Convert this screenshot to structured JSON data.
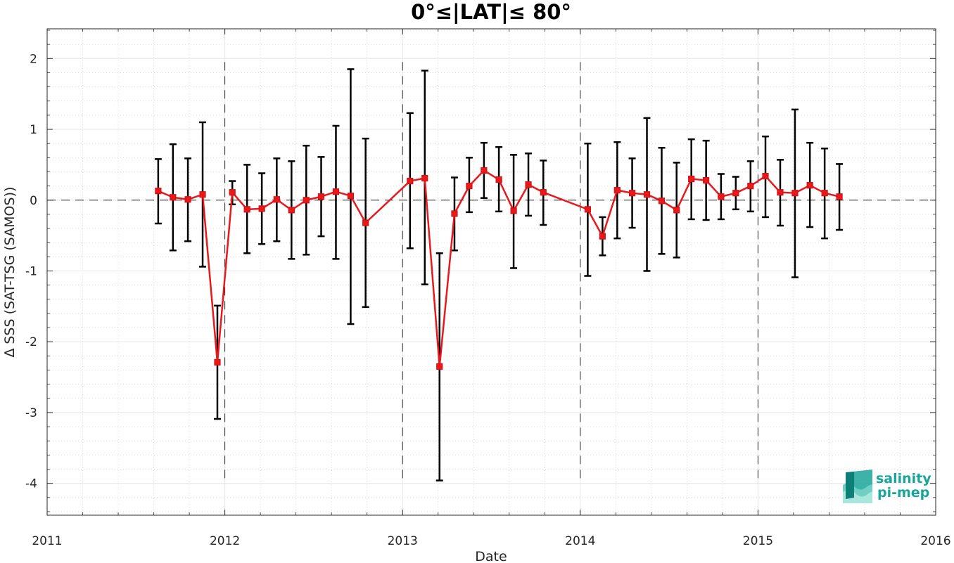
{
  "chart_data": {
    "type": "line",
    "title": "0°≤|LAT|≤ 80°",
    "xlabel": "Date",
    "ylabel": "∆ SSS (SAT-TSG (SAMOS))",
    "xlim": [
      2011,
      2016
    ],
    "ylim": [
      -4.45,
      2.42
    ],
    "x_ticks": [
      "2011",
      "2012",
      "2013",
      "2014",
      "2015",
      "2016"
    ],
    "y_ticks": [
      2,
      1,
      0,
      -1,
      -2,
      -3,
      -4
    ],
    "y_tick_labels": [
      "2",
      "1",
      "0",
      "-1",
      "-2",
      "-3",
      "-4"
    ],
    "grid": true,
    "year_boundaries": [
      2012,
      2013,
      2014,
      2015
    ],
    "zero_line": 0,
    "series": [
      {
        "color": "#e8191c",
        "errorbar_color": "#000000",
        "x": [
          2011.625,
          2011.708,
          2011.792,
          2011.875,
          2011.958,
          2012.042,
          2012.125,
          2012.208,
          2012.292,
          2012.375,
          2012.458,
          2012.542,
          2012.625,
          2012.708,
          2012.792,
          2013.042,
          2013.125,
          2013.208,
          2013.292,
          2013.375,
          2013.458,
          2013.542,
          2013.625,
          2013.708,
          2013.792,
          2014.042,
          2014.125,
          2014.208,
          2014.292,
          2014.375,
          2014.458,
          2014.542,
          2014.625,
          2014.708,
          2014.792,
          2014.875,
          2014.958,
          2015.042,
          2015.125,
          2015.208,
          2015.292,
          2015.375,
          2015.458
        ],
        "y": [
          0.13,
          0.04,
          0.01,
          0.08,
          -2.29,
          0.11,
          -0.13,
          -0.12,
          0.01,
          -0.14,
          0.0,
          0.05,
          0.12,
          0.06,
          -0.32,
          0.27,
          0.31,
          -2.35,
          -0.19,
          0.2,
          0.42,
          0.29,
          -0.15,
          0.22,
          0.11,
          -0.13,
          -0.51,
          0.14,
          0.1,
          0.08,
          -0.01,
          -0.14,
          0.3,
          0.28,
          0.05,
          0.1,
          0.2,
          0.34,
          0.11,
          0.1,
          0.21,
          0.1,
          0.05
        ],
        "err_low": [
          -0.33,
          -0.71,
          -0.58,
          -0.94,
          -3.09,
          -0.06,
          -0.75,
          -0.62,
          -0.58,
          -0.83,
          -0.77,
          -0.51,
          -0.83,
          -1.75,
          -1.51,
          -0.68,
          -1.19,
          -3.96,
          -0.71,
          -0.17,
          0.03,
          -0.16,
          -0.96,
          -0.22,
          -0.35,
          -1.07,
          -0.78,
          -0.54,
          -0.39,
          -1.0,
          -0.76,
          -0.81,
          -0.27,
          -0.28,
          -0.27,
          -0.13,
          -0.16,
          -0.24,
          -0.36,
          -1.09,
          -0.38,
          -0.54,
          -0.42
        ],
        "err_high": [
          0.58,
          0.79,
          0.59,
          1.1,
          -1.49,
          0.27,
          0.5,
          0.38,
          0.59,
          0.55,
          0.77,
          0.61,
          1.05,
          1.85,
          0.87,
          1.23,
          1.83,
          -0.75,
          0.32,
          0.6,
          0.81,
          0.75,
          0.64,
          0.66,
          0.56,
          0.8,
          -0.24,
          0.82,
          0.59,
          1.16,
          0.74,
          0.53,
          0.86,
          0.84,
          0.37,
          0.33,
          0.55,
          0.9,
          0.57,
          1.28,
          0.81,
          0.73,
          0.51
        ]
      }
    ]
  },
  "logo": {
    "line1": "salinity",
    "line2": "pi-mep",
    "color": "#1aa59a"
  }
}
